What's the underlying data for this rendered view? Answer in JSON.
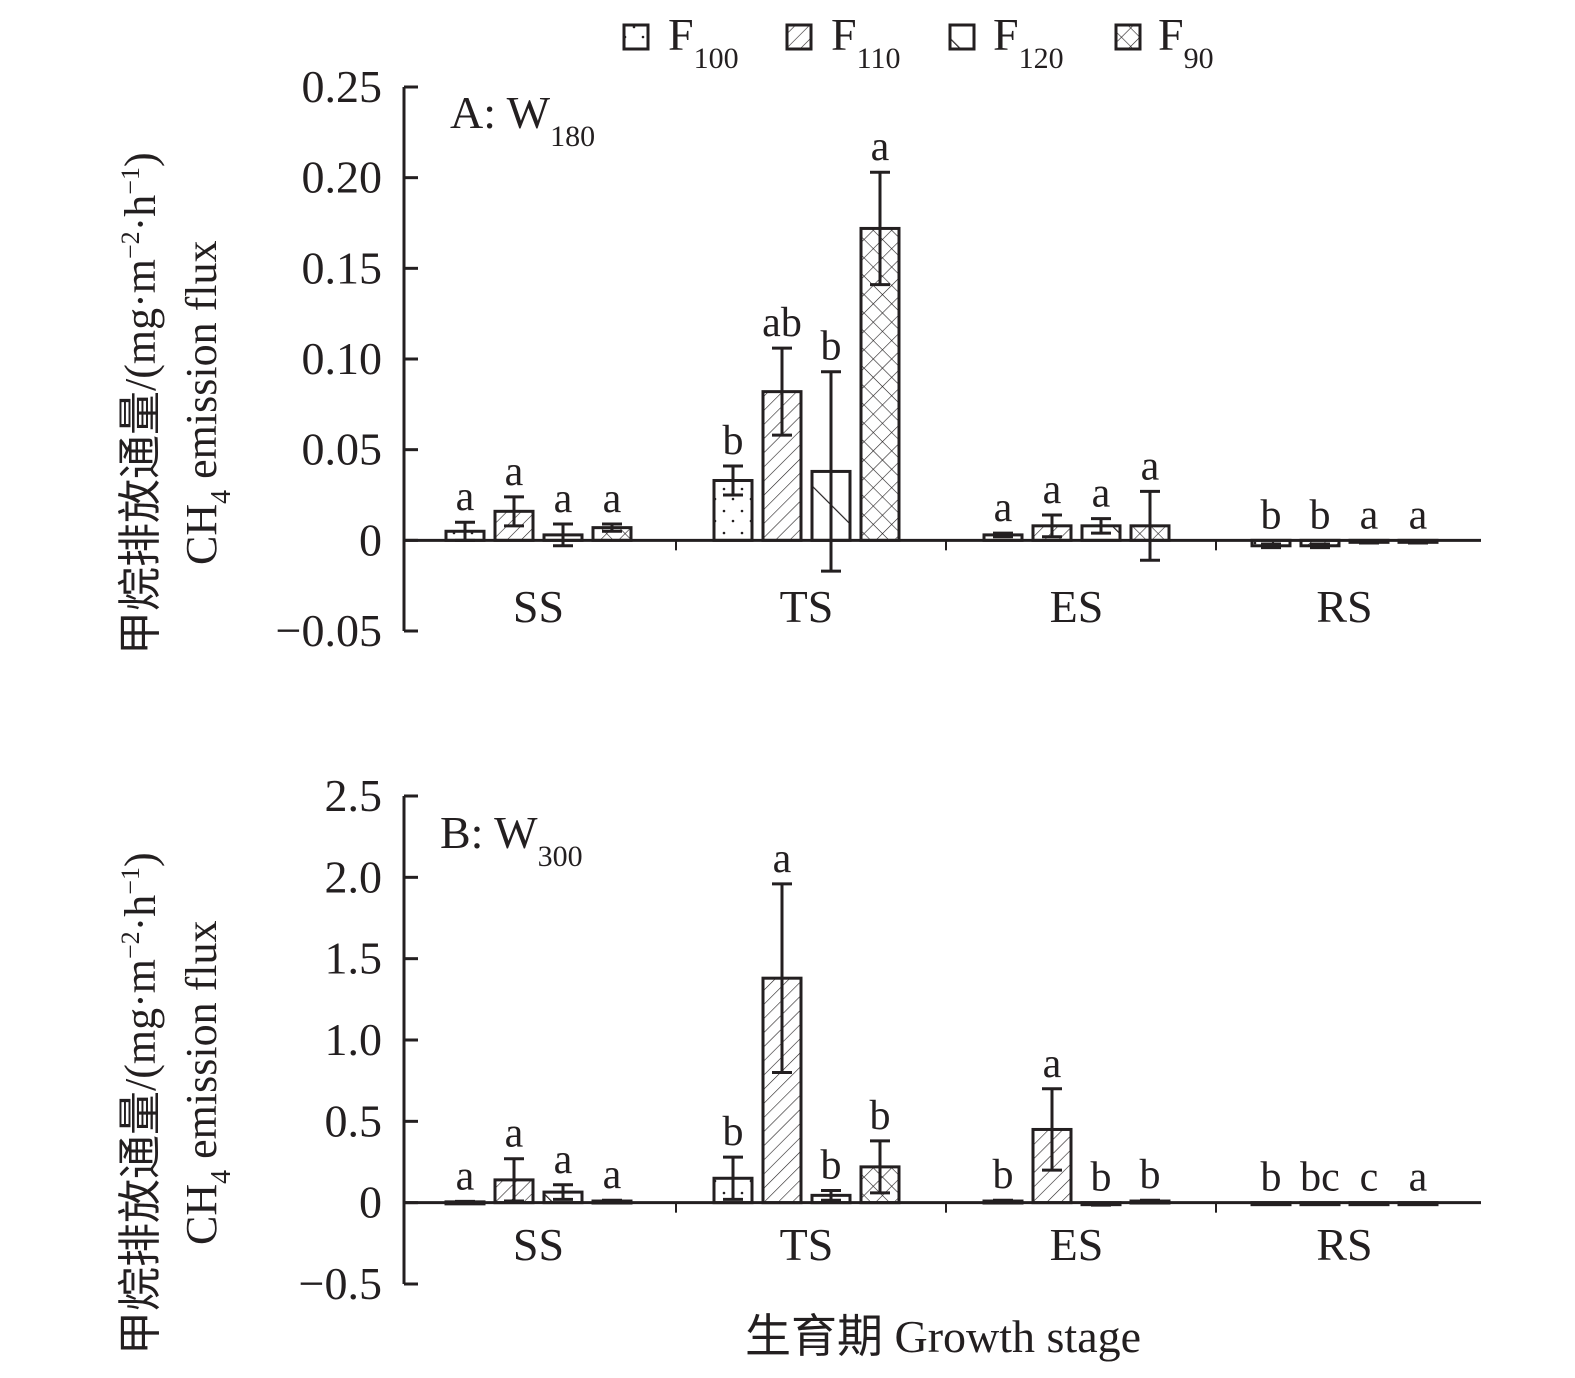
{
  "legend": {
    "items": [
      {
        "name": "F",
        "sub": "100",
        "pattern": "dots"
      },
      {
        "name": "F",
        "sub": "110",
        "pattern": "back-diagonal"
      },
      {
        "name": "F",
        "sub": "120",
        "pattern": "forward-diagonal"
      },
      {
        "name": "F",
        "sub": "90",
        "pattern": "crosshatch"
      }
    ],
    "placement": "top-center"
  },
  "ylabel_cn": "甲烷排放通量/(mg·m",
  "ylabel_unit_tail": "·h",
  "ylabel_sup1": "−2",
  "ylabel_sup2": "−1",
  "ylabel_close": ")",
  "ylabel_en": "CH",
  "ylabel_en_sub": "4",
  "ylabel_en_tail": " emission flux",
  "xlabel": "生育期 Growth stage",
  "chart_data": [
    {
      "type": "bar",
      "panel_label": "A: W",
      "panel_sub": "180",
      "title": "A: W180",
      "xlabel": "生育期 Growth stage",
      "ylabel": "甲烷排放通量/(mg·m⁻²·h⁻¹) CH4 emission flux",
      "categories": [
        "SS",
        "TS",
        "ES",
        "RS"
      ],
      "ylim": [
        -0.05,
        0.25
      ],
      "yticks": [
        -0.05,
        0,
        0.05,
        0.1,
        0.15,
        0.2,
        0.25
      ],
      "ytick_labels": [
        "−0.05",
        "0",
        "0.05",
        "0.10",
        "0.15",
        "0.20",
        "0.25"
      ],
      "grid": false,
      "series": [
        {
          "name": "F100",
          "values": [
            0.005,
            0.033,
            0.003,
            -0.003
          ],
          "errors": [
            0.005,
            0.008,
            0.001,
            0.001
          ],
          "letters": [
            "a",
            "b",
            "a",
            "b"
          ]
        },
        {
          "name": "F110",
          "values": [
            0.016,
            0.082,
            0.008,
            -0.003
          ],
          "errors": [
            0.008,
            0.024,
            0.006,
            0.001
          ],
          "letters": [
            "a",
            "ab",
            "a",
            "b"
          ]
        },
        {
          "name": "F120",
          "values": [
            0.003,
            0.038,
            0.008,
            -0.001
          ],
          "errors": [
            0.006,
            0.055,
            0.004,
            0.0005
          ],
          "letters": [
            "a",
            "b",
            "a",
            "a"
          ]
        },
        {
          "name": "F90",
          "values": [
            0.007,
            0.172,
            0.008,
            -0.001
          ],
          "errors": [
            0.002,
            0.031,
            0.019,
            0.0005
          ],
          "letters": [
            "a",
            "a",
            "a",
            "a"
          ]
        }
      ]
    },
    {
      "type": "bar",
      "panel_label": "B: W",
      "panel_sub": "300",
      "title": "B: W300",
      "xlabel": "生育期 Growth stage",
      "ylabel": "甲烷排放通量/(mg·m⁻²·h⁻¹) CH4 emission flux",
      "categories": [
        "SS",
        "TS",
        "ES",
        "RS"
      ],
      "ylim": [
        -0.5,
        2.5
      ],
      "yticks": [
        -0.5,
        0,
        0.5,
        1.0,
        1.5,
        2.0,
        2.5
      ],
      "ytick_labels": [
        "−0.5",
        "0",
        "0.5",
        "1.0",
        "1.5",
        "2.0",
        "2.5"
      ],
      "grid": false,
      "series": [
        {
          "name": "F100",
          "values": [
            0.005,
            0.15,
            0.01,
            0.0
          ],
          "errors": [
            0.003,
            0.13,
            0.005,
            0.0
          ],
          "letters": [
            "a",
            "b",
            "b",
            "b"
          ]
        },
        {
          "name": "F110",
          "values": [
            0.14,
            1.38,
            0.45,
            0.0
          ],
          "errors": [
            0.13,
            0.58,
            0.25,
            0.0
          ],
          "letters": [
            "a",
            "a",
            "a",
            "bc"
          ]
        },
        {
          "name": "F120",
          "values": [
            0.065,
            0.045,
            -0.01,
            -0.005
          ],
          "errors": [
            0.045,
            0.03,
            0.005,
            0.0
          ],
          "letters": [
            "a",
            "b",
            "b",
            "c"
          ]
        },
        {
          "name": "F90",
          "values": [
            0.01,
            0.22,
            0.01,
            0.0
          ],
          "errors": [
            0.005,
            0.16,
            0.005,
            0.0
          ],
          "letters": [
            "a",
            "b",
            "b",
            "a"
          ]
        }
      ]
    }
  ]
}
